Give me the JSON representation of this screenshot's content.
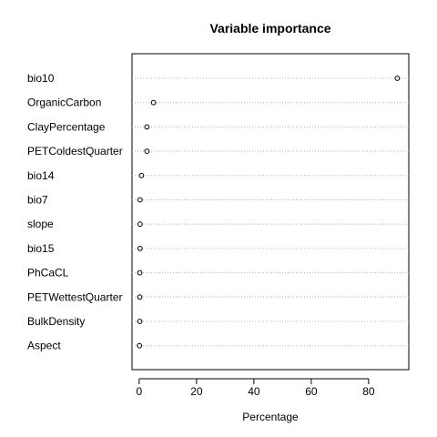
{
  "chart_data": {
    "type": "scatter",
    "subtype": "dotchart",
    "title": "Variable importance",
    "xlabel": "Percentage",
    "ylabel": "",
    "xlim": [
      -2.5,
      94
    ],
    "x_ticks": [
      "0",
      "20",
      "40",
      "60",
      "80"
    ],
    "grid": "horizontal dotted",
    "categories": [
      "bio10",
      "OrganicCarbon",
      "ClayPercentage",
      "PETColdestQuarter",
      "bio14",
      "bio7",
      "slope",
      "bio15",
      "PhCaCL",
      "PETWettestQuarter",
      "BulkDensity",
      "Aspect"
    ],
    "values": [
      90.0,
      5.0,
      2.7,
      2.7,
      0.8,
      0.3,
      0.3,
      0.3,
      0.2,
      0.2,
      0.2,
      0.1
    ]
  }
}
